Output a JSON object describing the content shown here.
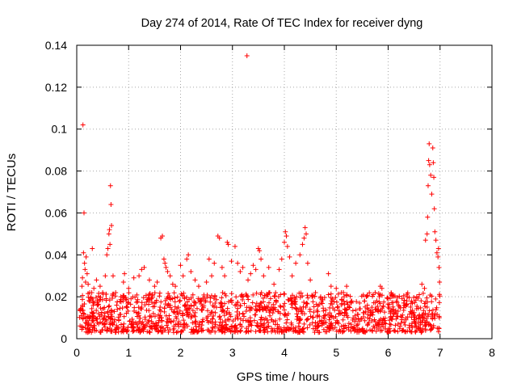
{
  "chart_data": {
    "type": "scatter",
    "title": "Day 274 of 2014, Rate Of TEC Index for receiver dyng",
    "xlabel": "GPS time / hours",
    "ylabel": "ROTI / TECUs",
    "xlim": [
      0,
      8
    ],
    "ylim": [
      0,
      0.14
    ],
    "xticks": [
      0,
      1,
      2,
      3,
      4,
      5,
      6,
      7,
      8
    ],
    "xtick_labels": [
      "0",
      "1",
      "2",
      "3",
      "4",
      "5",
      "6",
      "7",
      "8"
    ],
    "yticks": [
      0,
      0.02,
      0.04,
      0.06,
      0.08,
      0.1,
      0.12,
      0.14
    ],
    "ytick_labels": [
      "0",
      "0.02",
      "0.04",
      "0.06",
      "0.08",
      "0.1",
      "0.12",
      "0.14"
    ],
    "grid": true,
    "marker": "+",
    "color": "#ff0000",
    "series": [
      {
        "name": "ROTI",
        "points": [
          [
            0.12,
            0.102
          ],
          [
            0.14,
            0.06
          ],
          [
            0.13,
            0.041
          ],
          [
            0.15,
            0.036
          ],
          [
            0.16,
            0.033
          ],
          [
            0.11,
            0.029
          ],
          [
            0.17,
            0.027
          ],
          [
            0.1,
            0.025
          ],
          [
            0.18,
            0.039
          ],
          [
            0.2,
            0.031
          ],
          [
            0.22,
            0.026
          ],
          [
            0.25,
            0.022
          ],
          [
            0.3,
            0.043
          ],
          [
            0.33,
            0.024
          ],
          [
            0.38,
            0.028
          ],
          [
            0.45,
            0.025
          ],
          [
            0.5,
            0.022
          ],
          [
            0.55,
            0.03
          ],
          [
            0.58,
            0.04
          ],
          [
            0.6,
            0.043
          ],
          [
            0.62,
            0.05
          ],
          [
            0.63,
            0.052
          ],
          [
            0.64,
            0.045
          ],
          [
            0.65,
            0.073
          ],
          [
            0.66,
            0.064
          ],
          [
            0.67,
            0.054
          ],
          [
            0.7,
            0.03
          ],
          [
            0.75,
            0.022
          ],
          [
            0.85,
            0.02
          ],
          [
            0.9,
            0.027
          ],
          [
            0.92,
            0.031
          ],
          [
            1.0,
            0.024
          ],
          [
            1.1,
            0.029
          ],
          [
            1.2,
            0.03
          ],
          [
            1.25,
            0.033
          ],
          [
            1.3,
            0.034
          ],
          [
            1.4,
            0.028
          ],
          [
            1.5,
            0.025
          ],
          [
            1.55,
            0.027
          ],
          [
            1.62,
            0.048
          ],
          [
            1.65,
            0.049
          ],
          [
            1.68,
            0.038
          ],
          [
            1.7,
            0.036
          ],
          [
            1.72,
            0.034
          ],
          [
            1.75,
            0.032
          ],
          [
            1.8,
            0.03
          ],
          [
            1.85,
            0.026
          ],
          [
            1.9,
            0.025
          ],
          [
            2.0,
            0.035
          ],
          [
            2.05,
            0.03
          ],
          [
            2.12,
            0.038
          ],
          [
            2.15,
            0.04
          ],
          [
            2.2,
            0.032
          ],
          [
            2.28,
            0.028
          ],
          [
            2.35,
            0.025
          ],
          [
            2.5,
            0.027
          ],
          [
            2.55,
            0.038
          ],
          [
            2.6,
            0.03
          ],
          [
            2.65,
            0.036
          ],
          [
            2.72,
            0.049
          ],
          [
            2.75,
            0.048
          ],
          [
            2.8,
            0.034
          ],
          [
            2.85,
            0.03
          ],
          [
            2.9,
            0.046
          ],
          [
            2.92,
            0.045
          ],
          [
            2.98,
            0.037
          ],
          [
            3.05,
            0.044
          ],
          [
            3.1,
            0.036
          ],
          [
            3.15,
            0.032
          ],
          [
            3.2,
            0.034
          ],
          [
            3.28,
            0.135
          ],
          [
            3.3,
            0.028
          ],
          [
            3.35,
            0.031
          ],
          [
            3.4,
            0.035
          ],
          [
            3.45,
            0.033
          ],
          [
            3.5,
            0.043
          ],
          [
            3.52,
            0.042
          ],
          [
            3.55,
            0.038
          ],
          [
            3.6,
            0.03
          ],
          [
            3.7,
            0.034
          ],
          [
            3.8,
            0.026
          ],
          [
            3.9,
            0.033
          ],
          [
            3.95,
            0.038
          ],
          [
            4.0,
            0.046
          ],
          [
            4.02,
            0.051
          ],
          [
            4.04,
            0.049
          ],
          [
            4.06,
            0.044
          ],
          [
            4.1,
            0.039
          ],
          [
            4.15,
            0.03
          ],
          [
            4.22,
            0.036
          ],
          [
            4.3,
            0.04
          ],
          [
            4.35,
            0.045
          ],
          [
            4.38,
            0.048
          ],
          [
            4.4,
            0.053
          ],
          [
            4.42,
            0.05
          ],
          [
            4.45,
            0.036
          ],
          [
            4.5,
            0.028
          ],
          [
            4.6,
            0.022
          ],
          [
            4.7,
            0.02
          ],
          [
            4.85,
            0.031
          ],
          [
            4.9,
            0.025
          ],
          [
            5.0,
            0.024
          ],
          [
            5.1,
            0.022
          ],
          [
            5.15,
            0.02
          ],
          [
            5.2,
            0.025
          ],
          [
            5.3,
            0.018
          ],
          [
            5.45,
            0.017
          ],
          [
            5.6,
            0.016
          ],
          [
            5.75,
            0.022
          ],
          [
            5.85,
            0.025
          ],
          [
            5.88,
            0.024
          ],
          [
            6.0,
            0.015
          ],
          [
            6.1,
            0.014
          ],
          [
            6.2,
            0.016
          ],
          [
            6.3,
            0.017
          ],
          [
            6.45,
            0.018
          ],
          [
            6.55,
            0.02
          ],
          [
            6.6,
            0.021
          ],
          [
            6.65,
            0.026
          ],
          [
            6.7,
            0.024
          ],
          [
            6.72,
            0.047
          ],
          [
            6.75,
            0.05
          ],
          [
            6.76,
            0.058
          ],
          [
            6.77,
            0.073
          ],
          [
            6.78,
            0.085
          ],
          [
            6.79,
            0.093
          ],
          [
            6.8,
            0.083
          ],
          [
            6.82,
            0.078
          ],
          [
            6.84,
            0.069
          ],
          [
            6.86,
            0.091
          ],
          [
            6.87,
            0.084
          ],
          [
            6.88,
            0.077
          ],
          [
            6.89,
            0.062
          ],
          [
            6.9,
            0.051
          ],
          [
            6.92,
            0.047
          ],
          [
            6.94,
            0.041
          ],
          [
            6.96,
            0.039
          ],
          [
            6.97,
            0.043
          ],
          [
            6.98,
            0.034
          ],
          [
            6.99,
            0.027
          ]
        ]
      }
    ],
    "background_band": {
      "description": "dense cluster of readings between 0.003 and 0.022 TECU/min from 0.05 h to 7.0 h",
      "x_range": [
        0.05,
        7.0
      ],
      "y_range": [
        0.003,
        0.022
      ]
    }
  }
}
